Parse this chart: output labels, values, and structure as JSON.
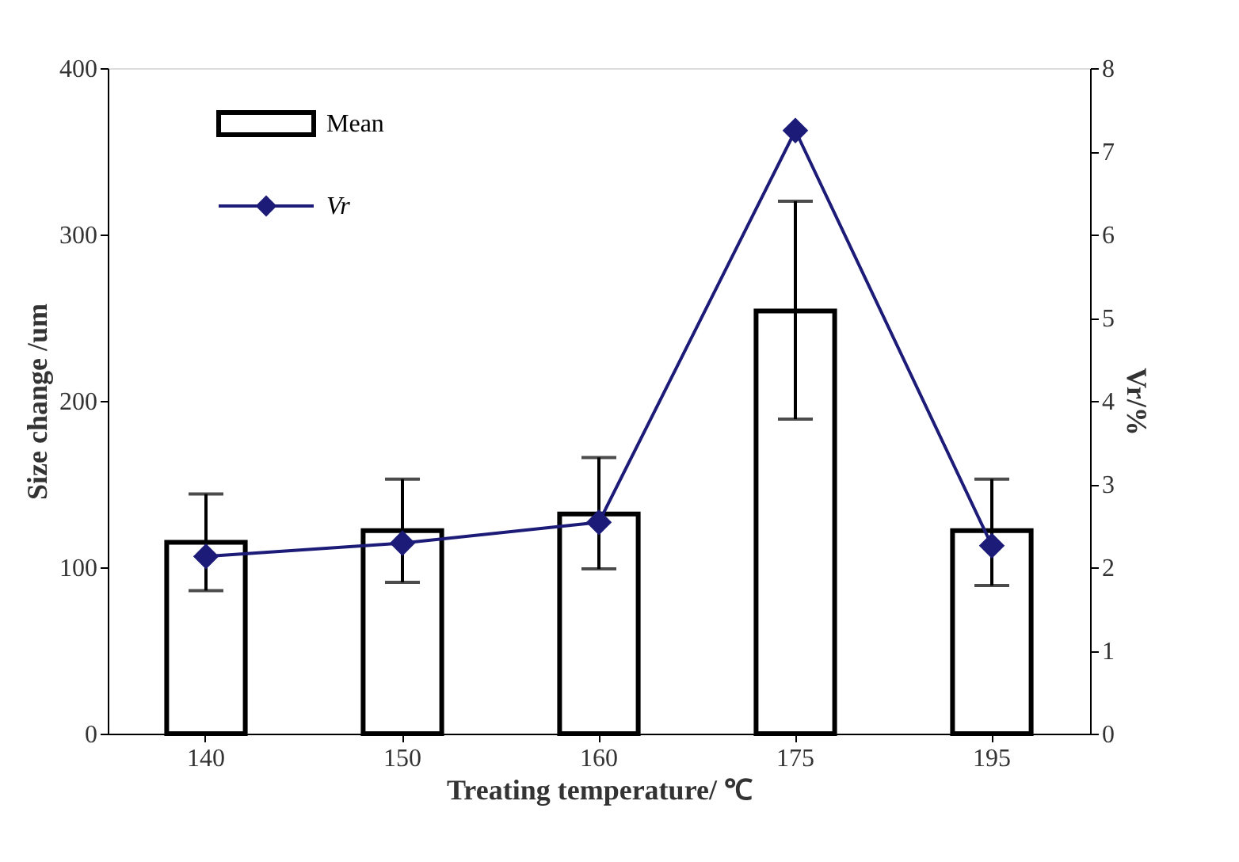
{
  "chart_data": {
    "type": "bar",
    "xlabel": "Treating temperature/ ℃",
    "ylabel": "Size change /um",
    "y2label": "Vr/%",
    "categories": [
      "140",
      "150",
      "160",
      "175",
      "195"
    ],
    "series": [
      {
        "name": "Mean",
        "color": "#ffffff",
        "values": [
          115,
          122,
          132,
          254,
          122
        ],
        "errors": [
          [
            86,
            144
          ],
          [
            91,
            153
          ],
          [
            99,
            166
          ],
          [
            189,
            320
          ],
          [
            89,
            153
          ]
        ]
      },
      {
        "name": "Vr",
        "type": "line",
        "axis": "y2",
        "color": "#1c1c78",
        "values": [
          2.13,
          2.29,
          2.54,
          7.25,
          2.26
        ],
        "marker": "diamond",
        "line_style": "solid"
      }
    ],
    "ylim": [
      0,
      400
    ],
    "yticks": [
      0,
      100,
      200,
      300,
      400
    ],
    "y2lim": [
      0,
      8
    ],
    "y2ticks": [
      0,
      1,
      2,
      3,
      4,
      5,
      6,
      7,
      8
    ],
    "grid": false,
    "legend": "top left"
  }
}
